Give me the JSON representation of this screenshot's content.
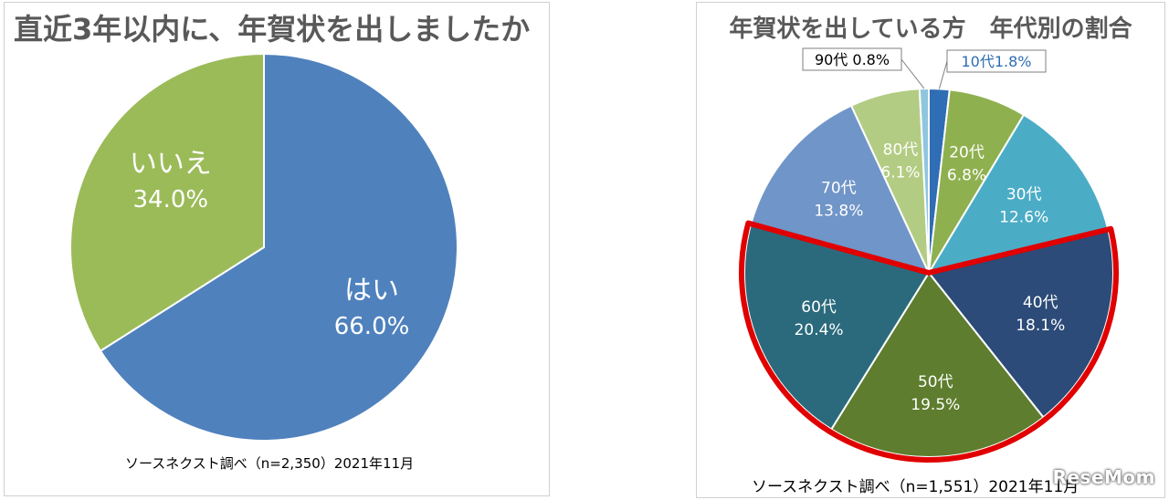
{
  "watermark": "ReseMom",
  "chart_data": [
    {
      "type": "pie",
      "title": "直近3年以内に、年賀状を出しましたか",
      "source": "ソースネクスト調べ（n=2,350）2021年11月",
      "categories": [
        "はい",
        "いいえ"
      ],
      "values": [
        66.0,
        34.0
      ],
      "value_labels": [
        "66.0%",
        "34.0%"
      ],
      "colors": [
        "#4f81bd",
        "#9bbb59"
      ]
    },
    {
      "type": "pie",
      "title": "年賀状を出している方　年代別の割合",
      "source": "ソースネクスト調べ（n=1,551）2021年11月",
      "categories": [
        "10代",
        "20代",
        "30代",
        "40代",
        "50代",
        "60代",
        "70代",
        "80代",
        "90代"
      ],
      "values": [
        1.8,
        6.8,
        12.6,
        18.1,
        19.5,
        20.4,
        13.8,
        6.1,
        0.8
      ],
      "value_labels": [
        "1.8%",
        "6.8%",
        "12.6%",
        "18.1%",
        "19.5%",
        "20.4%",
        "13.8%",
        "6.1%",
        "0.8%"
      ],
      "callout_labels": [
        "10代1.8%",
        "90代 0.8%"
      ],
      "highlighted": [
        "40代",
        "50代",
        "60代"
      ],
      "highlight_color": "#e00000",
      "colors": [
        "#2f6db5",
        "#8fb04f",
        "#4bacc6",
        "#2c4b78",
        "#5e7d2e",
        "#2b6a7c",
        "#7095c8",
        "#b3cc83",
        "#8ec6de"
      ]
    }
  ]
}
